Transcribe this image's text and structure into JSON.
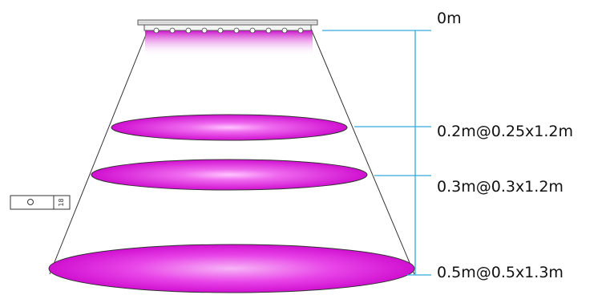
{
  "distance_labels": [
    "0m",
    "0.2m@0.25x1.2m",
    "0.3m@0.3x1.2m",
    "0.5m@0.5x1.3m"
  ],
  "fixture_icon": {
    "name": "light-fixture-end-view-icon",
    "number": "18"
  },
  "colors": {
    "beam_magenta": "#d916d9",
    "guide_line": "#35a9d9",
    "outline": "#333333"
  }
}
